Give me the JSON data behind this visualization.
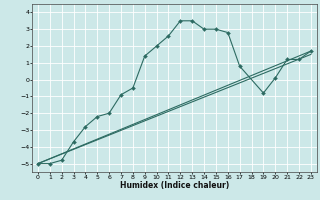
{
  "title": "",
  "xlabel": "Humidex (Indice chaleur)",
  "ylabel": "",
  "bg_color": "#cce8e8",
  "grid_color": "#ffffff",
  "line_color": "#2d6b62",
  "xlim": [
    -0.5,
    23.5
  ],
  "ylim": [
    -5.5,
    4.5
  ],
  "xticks": [
    0,
    1,
    2,
    3,
    4,
    5,
    6,
    7,
    8,
    9,
    10,
    11,
    12,
    13,
    14,
    15,
    16,
    17,
    18,
    19,
    20,
    21,
    22,
    23
  ],
  "yticks": [
    -5,
    -4,
    -3,
    -2,
    -1,
    0,
    1,
    2,
    3,
    4
  ],
  "curve1_x": [
    0,
    1,
    2,
    3,
    4,
    5,
    6,
    7,
    8,
    9,
    10,
    11,
    12,
    13,
    14,
    15,
    16,
    17,
    19,
    20,
    21,
    22,
    23
  ],
  "curve1_y": [
    -5,
    -5,
    -4.8,
    -3.7,
    -2.8,
    -2.2,
    -2.0,
    -0.9,
    -0.5,
    1.4,
    2.0,
    2.6,
    3.5,
    3.5,
    3.0,
    3.0,
    2.8,
    0.8,
    -0.8,
    0.1,
    1.2,
    1.2,
    1.7
  ],
  "curve2_x": [
    0,
    23
  ],
  "curve2_y": [
    -5,
    1.7
  ],
  "curve3_x": [
    0,
    23
  ],
  "curve3_y": [
    -5,
    1.5
  ],
  "figsize": [
    3.2,
    2.0
  ],
  "dpi": 100
}
